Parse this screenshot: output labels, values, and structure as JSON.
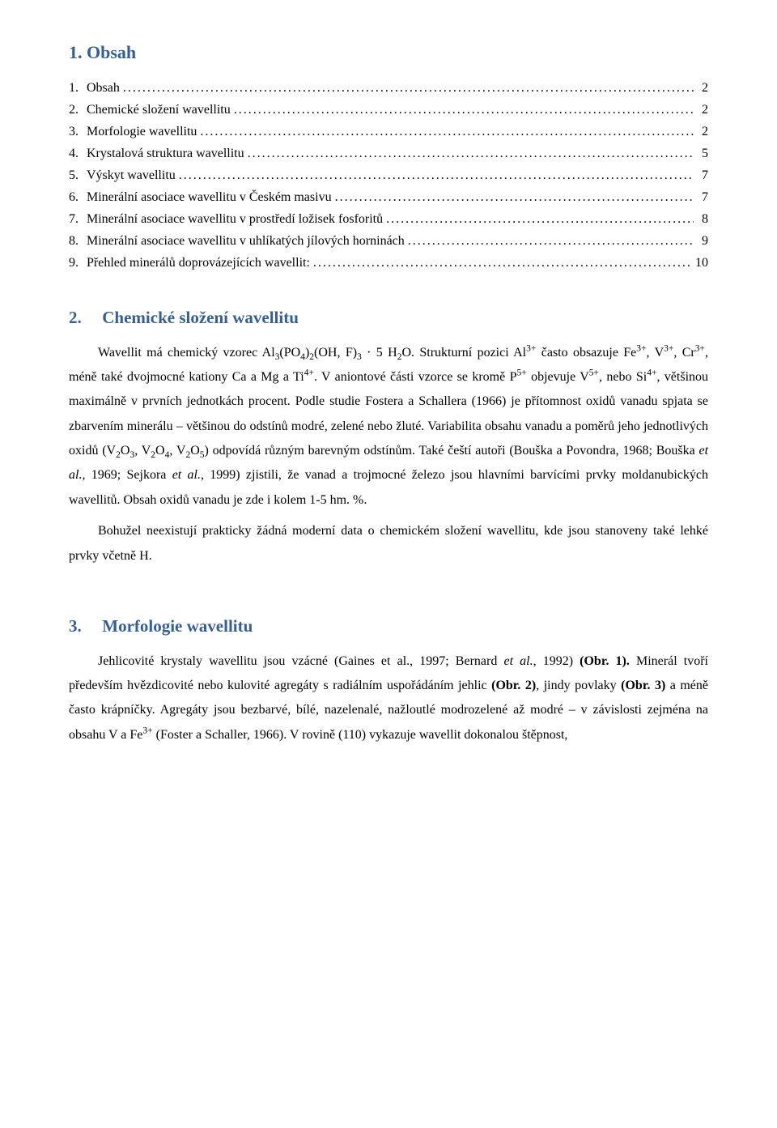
{
  "heading1": {
    "num": "1.",
    "title": "Obsah"
  },
  "toc": [
    {
      "num": "1.",
      "title": "Obsah",
      "page": "2"
    },
    {
      "num": "2.",
      "title": "Chemické složení wavellitu",
      "page": "2"
    },
    {
      "num": "3.",
      "title": "Morfologie wavellitu",
      "page": "2"
    },
    {
      "num": "4.",
      "title": "Krystalová struktura wavellitu",
      "page": "5"
    },
    {
      "num": "5.",
      "title": "Výskyt wavellitu",
      "page": "7"
    },
    {
      "num": "6.",
      "title": "Minerální asociace wavellitu v Českém masivu",
      "page": "7"
    },
    {
      "num": "7.",
      "title": "Minerální asociace wavellitu v prostředí ložisek fosforitů",
      "page": "8"
    },
    {
      "num": "8.",
      "title": "Minerální asociace wavellitu v uhlíkatých jílových horninách",
      "page": "9"
    },
    {
      "num": "9.",
      "title": "Přehled minerálů doprovázejících wavellit:",
      "page": "10"
    }
  ],
  "section2": {
    "num": "2.",
    "title": "Chemické složení wavellitu",
    "para1_html": "Wavellit má chemický vzorec Al<sub>3</sub>(PO<sub>4</sub>)<sub>2</sub>(OH, F)<sub>3</sub> · 5 H<sub>2</sub>O. Strukturní pozici Al<sup>3+</sup> často obsazuje Fe<sup>3+</sup>, V<sup>3+</sup>, Cr<sup>3+</sup>, méně také dvojmocné kationy Ca a Mg a Ti<sup>4+</sup>. V aniontové části vzorce se kromě P<sup>5+</sup> objevuje V<sup>5+</sup>, nebo Si<sup>4+</sup>, většinou maximálně v prvních jednotkách procent. Podle studie Fostera a Schallera (1966) je přítomnost oxidů vanadu spjata se zbarvením minerálu – většinou do odstínů modré, zelené nebo žluté. Variabilita obsahu vanadu a poměrů jeho jednotlivých oxidů (V<sub>2</sub>O<sub>3</sub>, V<sub>2</sub>O<sub>4</sub>, V<sub>2</sub>O<sub>5</sub>) odpovídá různým barevným odstínům. Také čeští autoři (Bouška a Povondra, 1968; Bouška <em>et al.</em>, 1969; Sejkora <em>et al.</em>, 1999) zjistili, že vanad a trojmocné železo jsou hlavními barvícími prvky moldanubických wavellitů. Obsah oxidů vanadu je zde i kolem 1-5 hm. %.",
    "para2_html": "Bohužel neexistují prakticky žádná moderní data o chemickém složení wavellitu, kde jsou stanoveny také lehké prvky včetně H."
  },
  "section3": {
    "num": "3.",
    "title": "Morfologie wavellitu",
    "para1_html": "Jehlicovité krystaly wavellitu jsou vzácné (Gaines et al., 1997; Bernard <em>et al.</em>, 1992) <b>(Obr. 1).</b> Minerál tvoří především hvězdicovité nebo kulovité agregáty s radiálním uspořádáním jehlic <b>(Obr. 2)</b>, jindy povlaky <b>(Obr. 3)</b> a méně často krápníčky. Agregáty jsou bezbarvé, bílé, nazelenalé, nažloutlé modrozelené až modré – v závislosti zejména na obsahu V a Fe<sup>3+</sup> (Foster a Schaller, 1966). V rovině (110) vykazuje wavellit dokonalou štěpnost,"
  },
  "colors": {
    "heading_color": "#365f91",
    "text_color": "#000000",
    "background": "#ffffff"
  },
  "typography": {
    "body_font": "Times New Roman",
    "body_size_pt": 12,
    "heading_size_pt": 16,
    "line_height": 1.9
  }
}
